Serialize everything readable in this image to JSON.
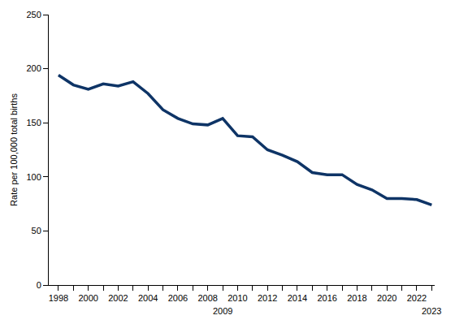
{
  "chart_data": {
    "type": "line",
    "y_label": "Rate per 100,000 total births",
    "x": [
      1998,
      1999,
      2000,
      2001,
      2002,
      2003,
      2004,
      2005,
      2006,
      2007,
      2008,
      2009,
      2010,
      2011,
      2012,
      2013,
      2014,
      2015,
      2016,
      2017,
      2018,
      2019,
      2020,
      2021,
      2022,
      2023
    ],
    "values": [
      194,
      185,
      181,
      186,
      184,
      188,
      177,
      162,
      154,
      149,
      148,
      154,
      138,
      137,
      125,
      120,
      114,
      104,
      102,
      102,
      93,
      88,
      80,
      80,
      79,
      74
    ],
    "color": "#0e3466",
    "xlim": [
      1997.35,
      2023.2
    ],
    "xticks": [
      1998,
      2000,
      2002,
      2004,
      2006,
      2008,
      2010,
      2012,
      2014,
      2016,
      2018,
      2020,
      2022
    ],
    "ylim": [
      0,
      250
    ],
    "yticks": [
      0,
      50,
      100,
      150,
      200,
      250
    ],
    "annotations": [
      {
        "text": "2009",
        "x": 2009
      },
      {
        "text": "2023",
        "x": 2023
      }
    ],
    "grid": false
  }
}
